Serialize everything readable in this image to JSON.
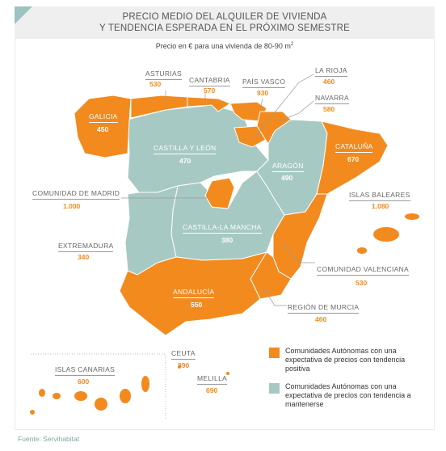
{
  "title_line1": "PRECIO MEDIO DEL ALQUILER DE VIVIENDA",
  "title_line2": "Y TENDENCIA ESPERADA EN EL PRÓXIMO SEMESTRE",
  "subtitle": "Precio en € para una vivienda de 80-90 m",
  "subtitle_sup": "2",
  "colors": {
    "positive": "#f28a1e",
    "stable": "#a7c9c3",
    "header": "#efefef"
  },
  "regions": {
    "asturias": {
      "name": "ASTURIAS",
      "value": "530",
      "trend": "positive"
    },
    "cantabria": {
      "name": "CANTABRIA",
      "value": "570",
      "trend": "positive"
    },
    "pais_vasco": {
      "name": "PAÍS VASCO",
      "value": "930",
      "trend": "positive"
    },
    "la_rioja": {
      "name": "LA RIOJA",
      "value": "460",
      "trend": "positive"
    },
    "navarra": {
      "name": "NAVARRA",
      "value": "580",
      "trend": "positive"
    },
    "galicia": {
      "name": "GALICIA",
      "value": "450",
      "trend": "positive"
    },
    "castilla_leon": {
      "name": "CASTILLA Y LEÓN",
      "value": "470",
      "trend": "stable"
    },
    "cataluna": {
      "name": "CATALUÑA",
      "value": "670",
      "trend": "positive"
    },
    "aragon": {
      "name": "ARAGÓN",
      "value": "490",
      "trend": "stable"
    },
    "madrid": {
      "name": "COMUNIDAD DE MADRID",
      "value": "1.000",
      "trend": "positive"
    },
    "baleares": {
      "name": "ISLAS BALEARES",
      "value": "1.080",
      "trend": "positive"
    },
    "castilla_mancha": {
      "name": "CASTILLA-LA MANCHA",
      "value": "380",
      "trend": "stable"
    },
    "extremadura": {
      "name": "EXTREMADURA",
      "value": "340",
      "trend": "stable"
    },
    "valenciana": {
      "name": "COMUNIDAD VALENCIANA",
      "value": "530",
      "trend": "positive"
    },
    "andalucia": {
      "name": "ANDALUCÍA",
      "value": "550",
      "trend": "positive"
    },
    "murcia": {
      "name": "REGIÓN DE MURCIA",
      "value": "460",
      "trend": "positive"
    },
    "canarias": {
      "name": "ISLAS CANARIAS",
      "value": "600",
      "trend": "positive"
    },
    "ceuta": {
      "name": "CEUTA",
      "value": "890",
      "trend": "positive"
    },
    "melilla": {
      "name": "MELILLA",
      "value": "690",
      "trend": "positive"
    }
  },
  "legend": {
    "positive": "Comunidades Autónomas con una expectativa de precios con tendencia positiva",
    "stable": "Comunidades Autónomas con una expectativa de precios con tendencia a mantenerse"
  },
  "source": "Fuente: Servihabitat"
}
